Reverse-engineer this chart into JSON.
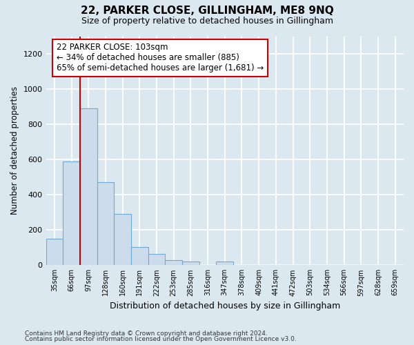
{
  "title": "22, PARKER CLOSE, GILLINGHAM, ME8 9NQ",
  "subtitle": "Size of property relative to detached houses in Gillingham",
  "xlabel": "Distribution of detached houses by size in Gillingham",
  "ylabel": "Number of detached properties",
  "bin_labels": [
    "35sqm",
    "66sqm",
    "97sqm",
    "128sqm",
    "160sqm",
    "191sqm",
    "222sqm",
    "253sqm",
    "285sqm",
    "316sqm",
    "347sqm",
    "378sqm",
    "409sqm",
    "441sqm",
    "472sqm",
    "503sqm",
    "534sqm",
    "566sqm",
    "597sqm",
    "628sqm",
    "659sqm"
  ],
  "bar_heights": [
    150,
    590,
    890,
    470,
    290,
    105,
    65,
    30,
    20,
    0,
    20,
    0,
    0,
    0,
    0,
    0,
    0,
    0,
    0,
    0,
    0
  ],
  "bar_color": "#cddcec",
  "bar_edge_color": "#6fa8d0",
  "vline_color": "#cc0000",
  "annotation_text": "22 PARKER CLOSE: 103sqm\n← 34% of detached houses are smaller (885)\n65% of semi-detached houses are larger (1,681) →",
  "annotation_box_color": "white",
  "annotation_box_edge_color": "#cc0000",
  "ylim": [
    0,
    1300
  ],
  "yticks": [
    0,
    200,
    400,
    600,
    800,
    1000,
    1200
  ],
  "footer_line1": "Contains HM Land Registry data © Crown copyright and database right 2024.",
  "footer_line2": "Contains public sector information licensed under the Open Government Licence v3.0.",
  "bg_color": "#dce8f0",
  "plot_bg_color": "#dce8f0",
  "grid_color": "white"
}
